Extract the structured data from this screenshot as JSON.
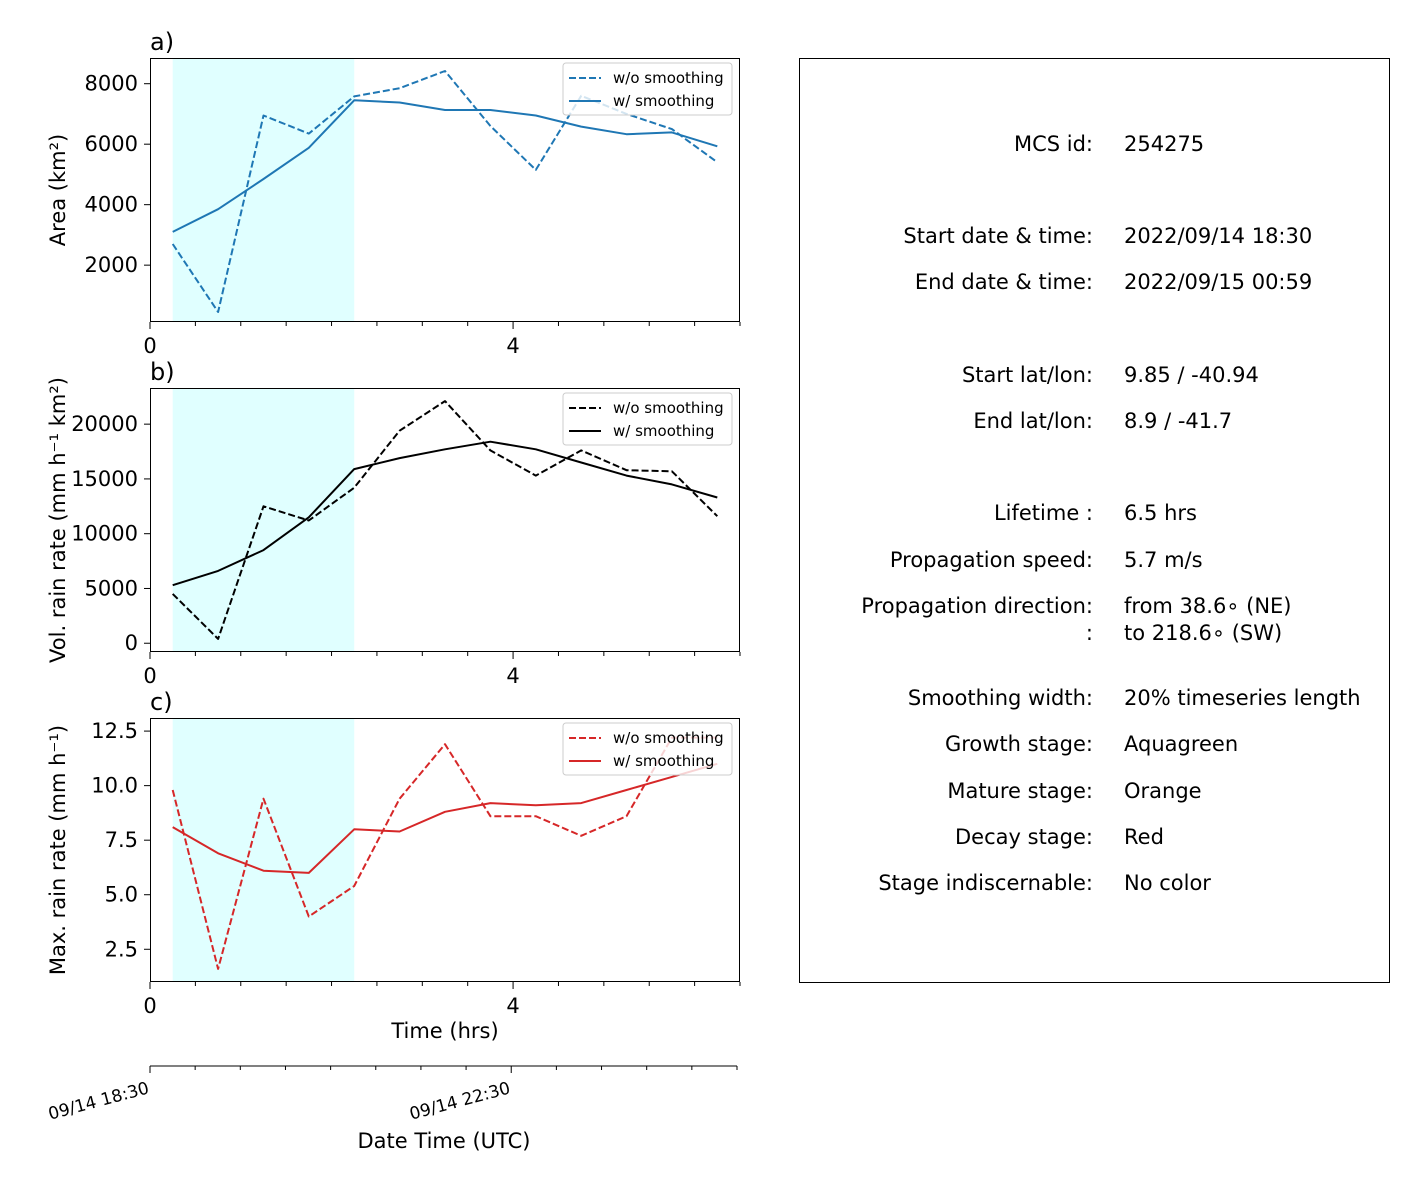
{
  "colors": {
    "highlight": "#e0ffff",
    "panel_a": "#1f77b4",
    "panel_b": "#000000",
    "panel_c": "#d62728"
  },
  "chart_data": [
    {
      "type": "line",
      "panel_label": "a)",
      "ylabel": "Area  (km²)",
      "xlabel": "",
      "xlim": [
        0,
        6.5
      ],
      "ylim": [
        120,
        8850
      ],
      "yticks": [
        2000,
        4000,
        6000,
        8000
      ],
      "xticks": [
        0,
        4
      ],
      "highlight_span": [
        0.25,
        2.25
      ],
      "legend": "top-right",
      "x": [
        0.25,
        0.75,
        1.25,
        1.75,
        2.25,
        2.75,
        3.25,
        3.75,
        4.25,
        4.75,
        5.25,
        5.75,
        6.25
      ],
      "series": [
        {
          "name": "w/o smoothing",
          "dash": true,
          "values": [
            2700,
            450,
            6950,
            6350,
            7580,
            7850,
            8420,
            6600,
            5150,
            7600,
            7000,
            6500,
            5400
          ]
        },
        {
          "name": "w/ smoothing",
          "dash": false,
          "values": [
            3100,
            3850,
            4850,
            5880,
            7450,
            7380,
            7130,
            7130,
            6950,
            6580,
            6330,
            6390,
            5930
          ]
        }
      ]
    },
    {
      "type": "line",
      "panel_label": "b)",
      "ylabel": "Vol. rain rate (mm h⁻¹ km²)",
      "xlabel": "",
      "xlim": [
        0,
        6.5
      ],
      "ylim": [
        -800,
        23300
      ],
      "yticks": [
        0,
        5000,
        10000,
        15000,
        20000
      ],
      "xticks": [
        0,
        4
      ],
      "highlight_span": [
        0.25,
        2.25
      ],
      "legend": "top-right",
      "x": [
        0.25,
        0.75,
        1.25,
        1.75,
        2.25,
        2.75,
        3.25,
        3.75,
        4.25,
        4.75,
        5.25,
        5.75,
        6.25
      ],
      "series": [
        {
          "name": "w/o smoothing",
          "dash": true,
          "values": [
            4500,
            400,
            12500,
            11200,
            14200,
            19400,
            22100,
            17600,
            15300,
            17600,
            15800,
            15700,
            11600
          ]
        },
        {
          "name": "w/ smoothing",
          "dash": false,
          "values": [
            5300,
            6600,
            8500,
            11500,
            15900,
            16900,
            17700,
            18400,
            17700,
            16500,
            15300,
            14500,
            13300
          ]
        }
      ]
    },
    {
      "type": "line",
      "panel_label": "c)",
      "ylabel": "Max. rain rate  (mm h⁻¹)",
      "xlabel": "Time (hrs)",
      "xlim": [
        0,
        6.5
      ],
      "ylim": [
        1.0,
        13.1
      ],
      "yticks": [
        2.5,
        5.0,
        7.5,
        10.0,
        12.5
      ],
      "xticks": [
        0,
        4
      ],
      "highlight_span": [
        0.25,
        2.25
      ],
      "legend": "top-right",
      "x": [
        0.25,
        0.75,
        1.25,
        1.75,
        2.25,
        2.75,
        3.25,
        3.75,
        4.25,
        4.75,
        5.25,
        5.75,
        6.25
      ],
      "series": [
        {
          "name": "w/o smoothing",
          "dash": true,
          "values": [
            9.8,
            1.6,
            9.4,
            4.0,
            5.4,
            9.4,
            11.9,
            8.6,
            8.6,
            7.7,
            8.6,
            12.2,
            12.2
          ]
        },
        {
          "name": "w/ smoothing",
          "dash": false,
          "values": [
            8.1,
            6.9,
            6.1,
            6.0,
            8.0,
            7.9,
            8.8,
            9.2,
            9.1,
            9.2,
            9.8,
            10.4,
            11.0
          ]
        }
      ]
    }
  ],
  "datetime_axis": {
    "label": "Date Time (UTC)",
    "tick_labels": [
      "09/14 18:30",
      "09/14 22:30"
    ],
    "tick_hours": [
      0,
      4
    ]
  },
  "info_panel": {
    "rows": [
      {
        "key": "MCS id:",
        "value": "254275"
      },
      {
        "key": "Start date & time:",
        "value": "2022/09/14 18:30"
      },
      {
        "key": "End date & time:",
        "value": "2022/09/15 00:59"
      },
      {
        "key": "Start lat/lon:",
        "value": "9.85 / -40.94"
      },
      {
        "key": "End lat/lon:",
        "value": "8.9 / -41.7"
      },
      {
        "key": "Lifetime :",
        "value": "6.5 hrs"
      },
      {
        "key": "Propagation speed:",
        "value": "5.7 m/s"
      },
      {
        "key": "Propagation direction:",
        "value": "from  38.6∘ (NE)"
      },
      {
        "key": ":",
        "value": "to   218.6∘ (SW)"
      },
      {
        "key": "Smoothing width:",
        "value": "20% timeseries length"
      },
      {
        "key": "Growth stage:",
        "value": "Aquagreen"
      },
      {
        "key": "Mature stage:",
        "value": "Orange"
      },
      {
        "key": "Decay stage:",
        "value": "Red"
      },
      {
        "key": "Stage indiscernable:",
        "value": "No color"
      }
    ]
  }
}
